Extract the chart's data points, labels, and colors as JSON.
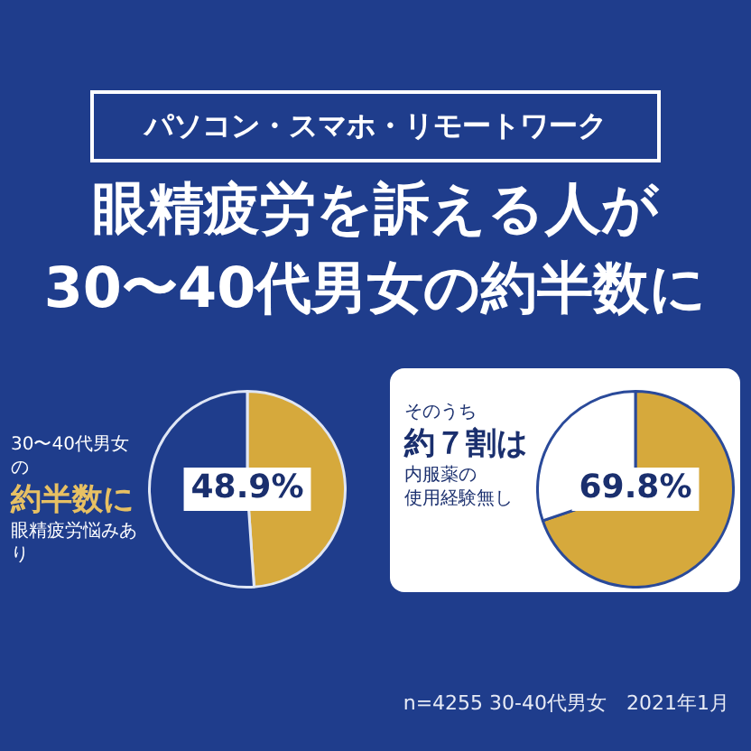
{
  "chart_data": [
    {
      "type": "pie",
      "subtitle": "パソコン・スマホ・リモートワーク",
      "title": "眼精疲労を訴える人が\n30〜40代男女の約半数に",
      "categories": [
        null,
        null
      ],
      "values": [
        48.9,
        51.1
      ],
      "colors": [
        "#d6a93c",
        "#1f3d8c"
      ],
      "value_labels": [
        "48.9%",
        null
      ],
      "annotations": [
        "30〜40代男女の",
        "約半数に",
        "眼精疲労悩みあり"
      ]
    },
    {
      "type": "pie",
      "categories": [
        null,
        null
      ],
      "values": [
        69.8,
        30.2
      ],
      "colors": [
        "#d6a93c",
        "#ffffff"
      ],
      "value_labels": [
        "69.8%",
        null
      ],
      "annotations": [
        "そのうち",
        "約７割は",
        "内服薬の",
        "使用経験無し",
        "n=4255 30-40代男女　2021年1月"
      ]
    }
  ]
}
